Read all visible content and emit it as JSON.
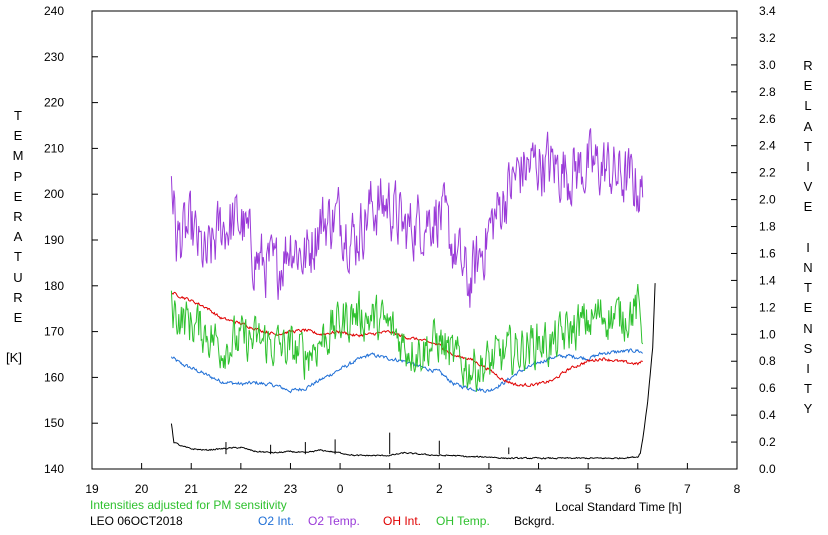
{
  "chart_data": {
    "type": "line",
    "x_axis": {
      "label": "Local Standard Time [h]",
      "range": [
        19,
        32
      ],
      "tick_labels": [
        "19",
        "20",
        "21",
        "22",
        "23",
        "0",
        "1",
        "2",
        "3",
        "4",
        "5",
        "6",
        "7",
        "8"
      ]
    },
    "y_left": {
      "label_letters": [
        "T",
        "E",
        "M",
        "P",
        "E",
        "R",
        "A",
        "T",
        "U",
        "R",
        "E",
        "",
        "[K]"
      ],
      "range": [
        140,
        240
      ],
      "tick_labels": [
        "140",
        "150",
        "160",
        "170",
        "180",
        "190",
        "200",
        "210",
        "220",
        "230",
        "240"
      ]
    },
    "y_right": {
      "label_letters": [
        "R",
        "E",
        "L",
        "A",
        "T",
        "I",
        "V",
        "E",
        "",
        "I",
        "N",
        "T",
        "E",
        "N",
        "S",
        "I",
        "T",
        "Y"
      ],
      "range": [
        0,
        3.4
      ],
      "tick_labels": [
        "0.0",
        "0.2",
        "0.4",
        "0.6",
        "0.8",
        "1.0",
        "1.2",
        "1.4",
        "1.6",
        "1.8",
        "2.0",
        "2.2",
        "2.4",
        "2.6",
        "2.8",
        "3.0",
        "3.2",
        "3.4"
      ]
    },
    "note": "Intensities adjusted for PM sensitivity",
    "station": "LEO 06OCT2018",
    "series": [
      {
        "name": "O2 Int.",
        "color": "#1f6fd6",
        "axis": "right",
        "noise": 0.022,
        "x": [
          20.6,
          20.8,
          21.0,
          21.3,
          21.6,
          22.0,
          22.3,
          22.7,
          23.0,
          23.3,
          23.6,
          24.0,
          24.3,
          24.6,
          25.0,
          25.3,
          25.6,
          26.0,
          26.3,
          26.6,
          27.0,
          27.3,
          27.6,
          28.0,
          28.3,
          28.6,
          29.0,
          29.3,
          29.6,
          30.0,
          30.1
        ],
        "y": [
          0.83,
          0.78,
          0.75,
          0.7,
          0.65,
          0.63,
          0.64,
          0.62,
          0.58,
          0.6,
          0.66,
          0.74,
          0.8,
          0.85,
          0.82,
          0.8,
          0.76,
          0.72,
          0.63,
          0.6,
          0.58,
          0.64,
          0.72,
          0.79,
          0.83,
          0.84,
          0.82,
          0.86,
          0.87,
          0.88,
          0.86
        ]
      },
      {
        "name": "O2 Temp.",
        "color": "#9a3bd8",
        "axis": "left",
        "noise": 11,
        "x": [
          20.6,
          20.7,
          21.0,
          21.3,
          21.6,
          22.0,
          22.3,
          22.7,
          23.0,
          23.3,
          23.6,
          24.0,
          24.3,
          24.6,
          25.0,
          25.3,
          25.6,
          26.0,
          26.3,
          26.6,
          27.0,
          27.3,
          27.6,
          28.0,
          28.3,
          28.6,
          29.0,
          29.3,
          29.6,
          30.0,
          30.1
        ],
        "y": [
          205,
          190,
          192,
          185,
          193,
          194,
          186,
          183,
          190,
          186,
          194,
          195,
          190,
          197,
          198,
          192,
          194,
          196,
          188,
          180,
          192,
          199,
          205,
          207,
          206,
          205,
          206,
          206,
          204,
          202,
          199
        ]
      },
      {
        "name": "OH Int.",
        "color": "#e00000",
        "axis": "right",
        "noise": 0.018,
        "x": [
          20.6,
          20.8,
          21.0,
          21.3,
          21.6,
          22.0,
          22.3,
          22.7,
          23.0,
          23.3,
          23.6,
          24.0,
          24.3,
          24.6,
          25.0,
          25.3,
          25.6,
          26.0,
          26.3,
          26.6,
          27.0,
          27.3,
          27.6,
          28.0,
          28.3,
          28.6,
          29.0,
          29.3,
          29.6,
          30.0,
          30.1
        ],
        "y": [
          1.31,
          1.28,
          1.25,
          1.2,
          1.12,
          1.08,
          1.04,
          1.0,
          1.02,
          1.03,
          1.0,
          1.02,
          0.99,
          1.0,
          1.02,
          0.98,
          0.96,
          0.92,
          0.84,
          0.82,
          0.74,
          0.66,
          0.62,
          0.63,
          0.66,
          0.74,
          0.8,
          0.82,
          0.8,
          0.78,
          0.8
        ]
      },
      {
        "name": "OH Temp.",
        "color": "#2fc12f",
        "axis": "left",
        "noise": 8,
        "x": [
          20.6,
          20.8,
          21.0,
          21.3,
          21.6,
          22.0,
          22.3,
          22.7,
          23.0,
          23.3,
          23.6,
          24.0,
          24.3,
          24.6,
          25.0,
          25.3,
          25.6,
          26.0,
          26.3,
          26.6,
          27.0,
          27.3,
          27.6,
          28.0,
          28.3,
          28.6,
          29.0,
          29.3,
          29.6,
          30.0,
          30.1
        ],
        "y": [
          175,
          173,
          172,
          170,
          167,
          168,
          168,
          167,
          166,
          165,
          168,
          172,
          174,
          173,
          171,
          167,
          166,
          168,
          164,
          162,
          163,
          165,
          166,
          168,
          167,
          170,
          172,
          174,
          173,
          175,
          170
        ]
      },
      {
        "name": "Bckgrd.",
        "color": "#000000",
        "axis": "right",
        "noise": 0.008,
        "x": [
          20.6,
          20.65,
          20.8,
          21.0,
          21.3,
          21.6,
          22.0,
          22.3,
          22.7,
          23.0,
          23.3,
          23.6,
          24.0,
          24.3,
          24.6,
          25.0,
          25.3,
          25.6,
          26.0,
          26.3,
          26.6,
          27.0,
          27.3,
          27.6,
          28.0,
          28.3,
          28.6,
          29.0,
          29.3,
          29.6,
          30.0,
          30.05,
          30.1,
          30.2,
          30.3,
          30.35
        ],
        "y": [
          0.34,
          0.2,
          0.17,
          0.15,
          0.14,
          0.15,
          0.16,
          0.13,
          0.12,
          0.13,
          0.12,
          0.14,
          0.12,
          0.1,
          0.1,
          0.1,
          0.12,
          0.11,
          0.1,
          0.1,
          0.09,
          0.09,
          0.08,
          0.08,
          0.08,
          0.08,
          0.08,
          0.08,
          0.08,
          0.08,
          0.09,
          0.12,
          0.22,
          0.5,
          0.9,
          1.38
        ]
      }
    ],
    "spikes": [
      {
        "series": "Bckgrd.",
        "x": 21.7,
        "y": 0.2
      },
      {
        "series": "Bckgrd.",
        "x": 22.6,
        "y": 0.18
      },
      {
        "series": "Bckgrd.",
        "x": 23.3,
        "y": 0.2
      },
      {
        "series": "Bckgrd.",
        "x": 23.9,
        "y": 0.22
      },
      {
        "series": "Bckgrd.",
        "x": 25.0,
        "y": 0.27
      },
      {
        "series": "Bckgrd.",
        "x": 26.0,
        "y": 0.21
      },
      {
        "series": "Bckgrd.",
        "x": 27.4,
        "y": 0.16
      }
    ],
    "grid": false,
    "legend_position": "bottom"
  }
}
